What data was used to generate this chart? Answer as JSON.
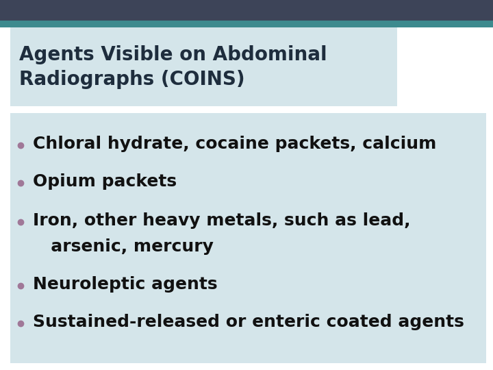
{
  "title_line1": "Agents Visible on Abdominal",
  "title_line2": "Radiographs (COINS)",
  "title_bg_color": "#d4e5ea",
  "body_bg_color": "#d4e5ea",
  "slide_bg_color": "#ffffff",
  "top_bar_dark_color": "#3d4458",
  "top_bar_teal_color": "#3d8a8e",
  "title_text_color": "#1e2d3d",
  "bullet_dot_color": "#a07898",
  "body_text_color": "#111111",
  "bullet_items": [
    "Chloral hydrate, cocaine packets, calcium",
    "Opium packets",
    "Iron, other heavy metals, such as lead,",
    "   arsenic, mercury",
    "Neuroleptic agents",
    "Sustained-released or enteric coated agents"
  ],
  "bullet_has_dot": [
    true,
    true,
    true,
    false,
    true,
    true
  ],
  "title_fontsize": 20,
  "body_fontsize": 18,
  "figsize": [
    7.2,
    5.4
  ],
  "dpi": 100
}
